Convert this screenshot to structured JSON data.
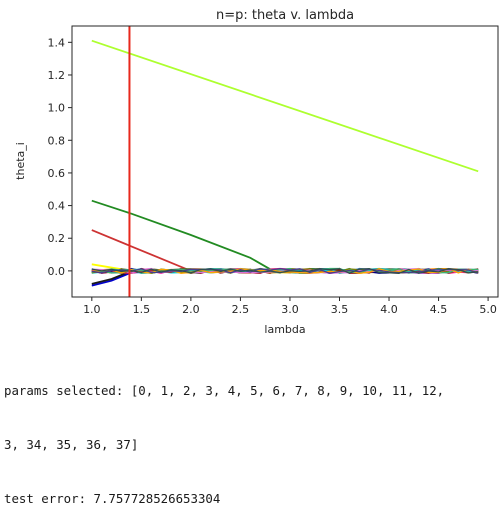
{
  "chart_data": {
    "type": "line",
    "title": "n=p: theta v. lambda",
    "xlabel": "lambda",
    "ylabel": "theta_i",
    "xlim": [
      0.8,
      5.1
    ],
    "ylim": [
      -0.16,
      1.5
    ],
    "xticks": [
      1.0,
      1.5,
      2.0,
      2.5,
      3.0,
      3.5,
      4.0,
      4.5,
      5.0
    ],
    "xtick_labels": [
      "1.0",
      "1.5",
      "2.0",
      "2.5",
      "3.0",
      "3.5",
      "4.0",
      "4.5",
      "5.0"
    ],
    "yticks": [
      0.0,
      0.2,
      0.4,
      0.6,
      0.8,
      1.0,
      1.2,
      1.4
    ],
    "ytick_labels": [
      "0.0",
      "0.2",
      "0.4",
      "0.6",
      "0.8",
      "1.0",
      "1.2",
      "1.4"
    ],
    "grid": false,
    "vline": {
      "x": 1.38,
      "color": "#e8281c"
    },
    "series": [
      {
        "color": "#adff2f",
        "x": [
          1.0,
          4.9
        ],
        "y": [
          1.41,
          0.61
        ]
      },
      {
        "color": "#228b22",
        "x": [
          1.0,
          1.4,
          2.0,
          2.6,
          2.8,
          3.2,
          4.0,
          4.9
        ],
        "y": [
          0.43,
          0.35,
          0.22,
          0.08,
          0.01,
          0.005,
          0.0,
          0.0
        ]
      },
      {
        "color": "#cd3333",
        "x": [
          1.0,
          1.4,
          2.0,
          2.5,
          3.0,
          4.0,
          4.9
        ],
        "y": [
          0.25,
          0.15,
          0.0,
          0.005,
          0.0,
          0.005,
          0.0
        ]
      },
      {
        "color": "#ffff00",
        "x": [
          1.0,
          1.4,
          2.0,
          3.0,
          4.0,
          4.9
        ],
        "y": [
          0.04,
          0.0,
          0.0,
          -0.01,
          0.0,
          0.0
        ]
      },
      {
        "color": "#0000cd",
        "x": [
          1.0,
          1.2,
          1.4,
          2.0,
          3.0,
          4.0,
          4.9
        ],
        "y": [
          -0.09,
          -0.06,
          -0.01,
          0.0,
          0.005,
          0.0,
          0.0
        ]
      },
      {
        "color": "#1a1a1a",
        "x": [
          1.0,
          1.2,
          1.4,
          2.0,
          3.0,
          4.0,
          4.9
        ],
        "y": [
          -0.08,
          -0.05,
          0.0,
          0.0,
          -0.005,
          0.0,
          0.0
        ]
      },
      {
        "color": "#8b4513",
        "x": [
          1.0,
          1.5,
          2.0,
          3.0,
          4.0,
          4.9
        ],
        "y": [
          0.0,
          0.0,
          0.01,
          0.0,
          -0.01,
          0.0
        ]
      },
      {
        "color": "#6a5acd",
        "x": [
          1.0,
          1.5,
          2.0,
          3.0,
          4.0,
          4.9
        ],
        "y": [
          0.005,
          -0.005,
          0.0,
          0.01,
          0.0,
          0.0
        ]
      },
      {
        "color": "#008b8b",
        "x": [
          1.0,
          1.5,
          2.0,
          3.0,
          4.0,
          4.9
        ],
        "y": [
          -0.005,
          0.005,
          0.0,
          0.0,
          0.01,
          0.005
        ]
      }
    ]
  },
  "output_lines": [
    "params selected: [0, 1, 2, 3, 4, 5, 6, 7, 8, 9, 10, 11, 12,",
    "3, 34, 35, 36, 37]",
    "test error: 7.757728526653304"
  ]
}
